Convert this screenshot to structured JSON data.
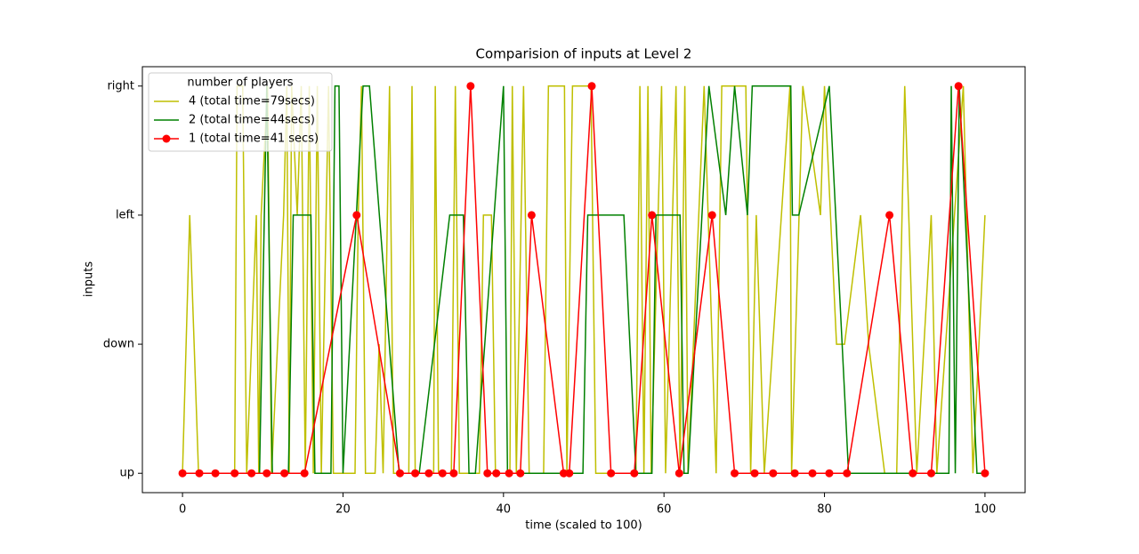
{
  "chart_data": {
    "type": "line",
    "title": "Comparision of inputs at Level 2",
    "x_label": "time (scaled to 100)",
    "y_label": "inputs",
    "legend_title": "number of players",
    "legend": "upper left",
    "xlim": [
      -5,
      105
    ],
    "xticks": [
      0,
      20,
      40,
      60,
      80,
      100
    ],
    "ylim": [
      -0.15,
      3.15
    ],
    "yticks": [
      {
        "value": 0,
        "label": "up"
      },
      {
        "value": 1,
        "label": "down"
      },
      {
        "value": 2,
        "label": "left"
      },
      {
        "value": 3,
        "label": "right"
      }
    ],
    "series": [
      {
        "name": "4 (total time=79secs)",
        "color": "#bfbf00",
        "x": [
          0,
          0.9,
          2.0,
          6.5,
          6.8,
          7.5,
          8.0,
          9.2,
          9.5,
          9.8,
          10.6,
          11.1,
          12.6,
          13.0,
          13.3,
          13.6,
          14.3,
          14.8,
          15.3,
          15.8,
          16.3,
          16.8,
          17.3,
          18.2,
          18.8,
          21.5,
          21.9,
          22.3,
          22.8,
          24.0,
          24.5,
          25.0,
          25.8,
          26.3,
          28.2,
          28.6,
          29.0,
          31.3,
          31.5,
          31.9,
          33.5,
          34.0,
          34.5,
          37.0,
          37.5,
          38.5,
          39.0,
          40.8,
          41.1,
          41.6,
          42.5,
          43.2,
          45.0,
          45.6,
          47.6,
          47.9,
          48.6,
          50.9,
          51.5,
          56.5,
          57.0,
          57.5,
          58.0,
          58.4,
          59.7,
          60.2,
          61.5,
          62.0,
          62.6,
          63.0,
          65.0,
          66.5,
          67.2,
          70.2,
          70.8,
          71.5,
          72.5,
          75.7,
          75.9,
          77.3,
          79.5,
          80.0,
          81.5,
          82.5,
          84.5,
          85.5,
          87.5,
          89.0,
          90.0,
          91.5,
          93.3,
          94.0,
          97.3,
          98.5,
          100
        ],
        "values": [
          0,
          2,
          0,
          0,
          3,
          3,
          0,
          2,
          0,
          2,
          3,
          0,
          2,
          3,
          0,
          3,
          2,
          3,
          0,
          3,
          0,
          3,
          0,
          3,
          0,
          0,
          2,
          3,
          0,
          0,
          1,
          0,
          3,
          0,
          0,
          3,
          0,
          0,
          3,
          0,
          0,
          3,
          0,
          0,
          2,
          2,
          0,
          0,
          3,
          0,
          3,
          0,
          0,
          3,
          3,
          0,
          3,
          3,
          0,
          0,
          3,
          0,
          3,
          0,
          3,
          0,
          3,
          0,
          3,
          0,
          3,
          0,
          3,
          3,
          0,
          2,
          0,
          3,
          0,
          3,
          2,
          3,
          1,
          1,
          2,
          1,
          0,
          0,
          3,
          0,
          2,
          0,
          3,
          0,
          2
        ]
      },
      {
        "name": "2 (total time=44secs)",
        "color": "#008000",
        "x": [
          0,
          9.6,
          10.5,
          11.2,
          13.2,
          13.8,
          16.0,
          16.5,
          18.5,
          19.0,
          19.5,
          20.0,
          22.5,
          23.3,
          27.0,
          29.5,
          33.3,
          35.0,
          35.7,
          36.5,
          40.0,
          40.5,
          49.9,
          50.5,
          55.0,
          56.5,
          58.5,
          59.0,
          62.0,
          62.5,
          63.0,
          65.6,
          67.7,
          68.8,
          70.4,
          71.0,
          75.8,
          76.0,
          76.8,
          80.6,
          83.0,
          95.5,
          95.8,
          96.3,
          96.8,
          99.0,
          100
        ],
        "values": [
          0,
          0,
          3,
          0,
          0,
          2,
          2,
          0,
          0,
          3,
          3,
          0,
          3,
          3,
          0,
          0,
          2,
          2,
          0,
          0,
          3,
          0,
          0,
          2,
          2,
          0,
          0,
          2,
          2,
          0,
          0,
          3,
          2,
          3,
          2,
          3,
          3,
          2,
          2,
          3,
          0,
          0,
          3,
          0,
          3,
          0,
          0
        ]
      },
      {
        "name": "1 (total time=41 secs)",
        "color": "#ff0000",
        "marker": "o",
        "x": [
          0,
          2.1,
          4.1,
          6.5,
          8.6,
          10.5,
          12.7,
          15.2,
          21.7,
          27.1,
          29.0,
          30.7,
          32.4,
          33.8,
          35.9,
          38.0,
          39.1,
          40.7,
          42.1,
          43.5,
          47.5,
          48.2,
          51.0,
          53.4,
          56.3,
          58.5,
          61.9,
          66.0,
          68.8,
          71.3,
          73.6,
          76.3,
          78.5,
          80.6,
          82.8,
          88.1,
          91.0,
          93.3,
          96.7,
          100
        ],
        "values": [
          0,
          0,
          0,
          0,
          0,
          0,
          0,
          0,
          2,
          0,
          0,
          0,
          0,
          0,
          3,
          0,
          0,
          0,
          0,
          2,
          0,
          0,
          3,
          0,
          0,
          2,
          0,
          2,
          0,
          0,
          0,
          0,
          0,
          0,
          0,
          2,
          0,
          0,
          3,
          0
        ]
      }
    ]
  }
}
